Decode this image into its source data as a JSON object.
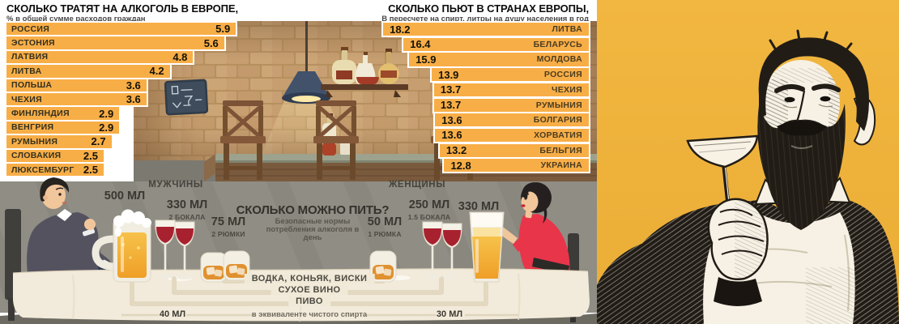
{
  "chart_data": [
    {
      "type": "bar",
      "orientation": "horizontal",
      "title": "СКОЛЬКО ТРАТЯТ НА АЛКОГОЛЬ В ЕВРОПЕ,",
      "subtitle": "% в общей сумме расходов граждан",
      "unit": "% в общей сумме расходов граждан",
      "categories": [
        "РОССИЯ",
        "ЭСТОНИЯ",
        "ЛАТВИЯ",
        "ЛИТВА",
        "ПОЛЬША",
        "ЧЕХИЯ",
        "ФИНЛЯНДИЯ",
        "ВЕНГРИЯ",
        "РУМЫНИЯ",
        "СЛОВАКИЯ",
        "ЛЮКСЕМБУРГ"
      ],
      "values": [
        5.9,
        5.6,
        4.8,
        4.2,
        3.6,
        3.6,
        2.9,
        2.9,
        2.7,
        2.5,
        2.5
      ],
      "xlim": [
        0,
        6.2
      ],
      "bar_color": "#F8AE47",
      "value_side": "right",
      "label_side": "left",
      "grid": false,
      "legend": false
    },
    {
      "type": "bar",
      "orientation": "horizontal",
      "title": "СКОЛЬКО ПЬЮТ В СТРАНАХ ЕВРОПЫ,",
      "subtitle": "В пересчете на спирт, литры на душу населения в год",
      "unit": "литры чистого спирта на душу населения в год",
      "categories": [
        "ЛИТВА",
        "БЕЛАРУСЬ",
        "МОЛДОВА",
        "РОССИЯ",
        "ЧЕХИЯ",
        "РУМЫНИЯ",
        "БОЛГАРИЯ",
        "ХОРВАТИЯ",
        "БЕЛЬГИЯ",
        "УКРАИНА"
      ],
      "values": [
        18.2,
        16.4,
        15.9,
        13.9,
        13.7,
        13.7,
        13.6,
        13.6,
        13.2,
        12.8
      ],
      "xlim": [
        0,
        18.5
      ],
      "bar_color": "#F8AE47",
      "value_side": "left",
      "label_side": "right",
      "grid": false,
      "legend": false
    }
  ],
  "norms": {
    "men_label": "МУЖЧИНЫ",
    "women_label": "ЖЕНЩИНЫ",
    "title": "СКОЛЬКО МОЖНО ПИТЬ?",
    "subtitle": "Безопасные нормы потребления алкоголя в день",
    "men": [
      {
        "amount": "500 МЛ",
        "note": "",
        "drink": "beer-mug"
      },
      {
        "amount": "330 МЛ",
        "note": "2 БОКАЛА",
        "drink": "wine-glasses"
      },
      {
        "amount": "75 МЛ",
        "note": "2 РЮМКИ",
        "drink": "whisky-glasses"
      }
    ],
    "women": [
      {
        "amount": "50 МЛ",
        "note": "1 РЮМКА",
        "drink": "whisky-glass"
      },
      {
        "amount": "250 МЛ",
        "note": "1.5 БОКАЛА",
        "drink": "wine-glasses"
      },
      {
        "amount": "330 МЛ",
        "note": "",
        "drink": "beer-glass"
      }
    ],
    "drinks": [
      "ВОДКА, КОНЬЯК, ВИСКИ",
      "СУХОЕ ВИНО",
      "ПИВО"
    ],
    "men_equivalent": "40 МЛ",
    "women_equivalent": "30 МЛ",
    "equivalent_note": "в эквиваленте чистого спирта"
  },
  "colors": {
    "bar_orange": "#F8AE47",
    "panel_yellow": "#F0B43C",
    "tablecloth": "#F2EADA",
    "wall_gray": "#8F8D84",
    "brick_tan": "#C69E70",
    "wine_red": "#A8212F",
    "beer_gold": "#F3AE35",
    "dress_red": "#E8354A",
    "ink_black": "#211C16"
  }
}
